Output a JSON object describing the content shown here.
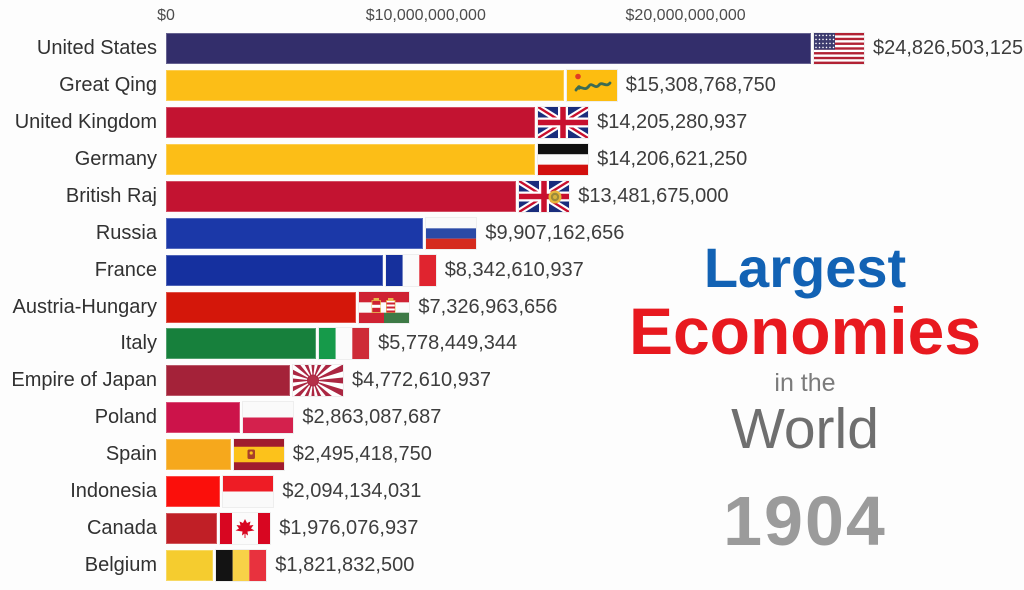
{
  "chart_data": {
    "type": "bar",
    "orientation": "horizontal",
    "title": "Largest Economies in the World",
    "year": "1904",
    "legend": "none",
    "grid": false,
    "axis_ticks": [
      {
        "label": "$0",
        "value": 0
      },
      {
        "label": "$10,000,000,000",
        "value": 10000000000
      },
      {
        "label": "$20,000,000,000",
        "value": 20000000000
      }
    ],
    "xlim": [
      0,
      26000000000
    ],
    "rows": [
      {
        "country": "United States",
        "value": 24826503125,
        "value_label": "$24,826,503,125",
        "bar_color": "#332e6b",
        "flag": "united-states"
      },
      {
        "country": "Great Qing",
        "value": 15308768750,
        "value_label": "$15,308,768,750",
        "bar_color": "#fcbe17",
        "flag": "great-qing"
      },
      {
        "country": "United Kingdom",
        "value": 14205280937,
        "value_label": "$14,205,280,937",
        "bar_color": "#c31331",
        "flag": "united-kingdom"
      },
      {
        "country": "Germany",
        "value": 14206621250,
        "value_label": "$14,206,621,250",
        "bar_color": "#fcbe17",
        "flag": "german-empire"
      },
      {
        "country": "British Raj",
        "value": 13481675000,
        "value_label": "$13,481,675,000",
        "bar_color": "#c31331",
        "flag": "british-raj"
      },
      {
        "country": "Russia",
        "value": 9907162656,
        "value_label": "$9,907,162,656",
        "bar_color": "#1b38a8",
        "flag": "russia"
      },
      {
        "country": "France",
        "value": 8342610937,
        "value_label": "$8,342,610,937",
        "bar_color": "#15309f",
        "flag": "france"
      },
      {
        "country": "Austria-Hungary",
        "value": 7326963656,
        "value_label": "$7,326,963,656",
        "bar_color": "#d4170a",
        "flag": "austria-hungary"
      },
      {
        "country": "Italy",
        "value": 5778449344,
        "value_label": "$5,778,449,344",
        "bar_color": "#17803c",
        "flag": "italy"
      },
      {
        "country": "Empire of Japan",
        "value": 4772610937,
        "value_label": "$4,772,610,937",
        "bar_color": "#a42239",
        "flag": "japan-ensign"
      },
      {
        "country": "Poland",
        "value": 2863087687,
        "value_label": "$2,863,087,687",
        "bar_color": "#cc134a",
        "flag": "poland"
      },
      {
        "country": "Spain",
        "value": 2495418750,
        "value_label": "$2,495,418,750",
        "bar_color": "#f6a81c",
        "flag": "spain"
      },
      {
        "country": "Indonesia",
        "value": 2094134031,
        "value_label": "$2,094,134,031",
        "bar_color": "#fb0f0b",
        "flag": "indonesia"
      },
      {
        "country": "Canada",
        "value": 1976076937,
        "value_label": "$1,976,076,937",
        "bar_color": "#c01f26",
        "flag": "canada"
      },
      {
        "country": "Belgium",
        "value": 1821832500,
        "value_label": "$1,821,832,500",
        "bar_color": "#f5cc2f",
        "flag": "belgium"
      }
    ]
  },
  "title_block": {
    "line1": "Largest",
    "line1_color": "#1262b4",
    "line2": "Economies",
    "line2_color": "#e8191f",
    "line3": "in the",
    "line3_color": "#7b7b7b",
    "line4": "World",
    "line4_color": "#6f6f6f",
    "year": "1904",
    "year_color": "#9b9b9b"
  }
}
